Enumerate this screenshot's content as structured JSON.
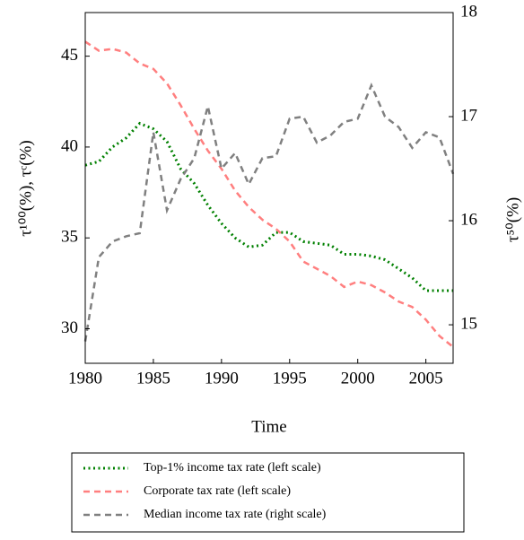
{
  "chart_data": {
    "type": "line",
    "xlabel": "Time",
    "ylabel": "τ¹⁰⁰(%), τᶜ(%)",
    "y2label": "τ⁵⁰(%)",
    "x": [
      1980,
      1981,
      1982,
      1983,
      1984,
      1985,
      1986,
      1987,
      1988,
      1989,
      1990,
      1991,
      1992,
      1993,
      1994,
      1995,
      1996,
      1997,
      1998,
      1999,
      2000,
      2001,
      2002,
      2003,
      2004,
      2005,
      2006,
      2007
    ],
    "xlim": [
      1980,
      2007
    ],
    "xticks": [
      1980,
      1985,
      1990,
      1995,
      2000,
      2005
    ],
    "ylim": [
      28.1,
      47.4
    ],
    "yticks": [
      30,
      35,
      40,
      45
    ],
    "y2lim": [
      14.63,
      18
    ],
    "y2ticks": [
      15,
      16,
      17,
      18
    ],
    "series": [
      {
        "name": "Top-1% income tax rate (left scale)",
        "color": "#008000",
        "style": "dotted",
        "values": [
          39.0,
          39.2,
          40.0,
          40.5,
          41.3,
          41.0,
          40.3,
          38.8,
          38.0,
          36.8,
          35.8,
          35.0,
          34.5,
          34.6,
          35.3,
          35.3,
          34.8,
          34.7,
          34.6,
          34.1,
          34.1,
          34.0,
          33.8,
          33.3,
          32.8,
          32.1,
          32.1,
          32.1
        ]
      },
      {
        "name": "Corporate tax rate (left scale)",
        "color": "#ff7f7f",
        "style": "dashed",
        "values": [
          45.8,
          45.3,
          45.4,
          45.2,
          44.6,
          44.3,
          43.5,
          42.3,
          41.0,
          39.8,
          38.8,
          37.6,
          36.7,
          36.0,
          35.5,
          34.8,
          33.7,
          33.3,
          32.9,
          32.3,
          32.6,
          32.4,
          32.0,
          31.5,
          31.2,
          30.5,
          29.6,
          29.0
        ]
      },
      {
        "name": "Median income tax rate (right scale)",
        "color": "#808080",
        "style": "dashed",
        "axis": "y2",
        "values": [
          14.84,
          15.65,
          15.8,
          15.85,
          15.88,
          16.85,
          16.1,
          16.4,
          16.6,
          17.1,
          16.5,
          16.65,
          16.35,
          16.6,
          16.62,
          16.98,
          17.0,
          16.75,
          16.82,
          16.95,
          16.98,
          17.3,
          17.0,
          16.9,
          16.7,
          16.85,
          16.8,
          16.45
        ]
      }
    ]
  }
}
